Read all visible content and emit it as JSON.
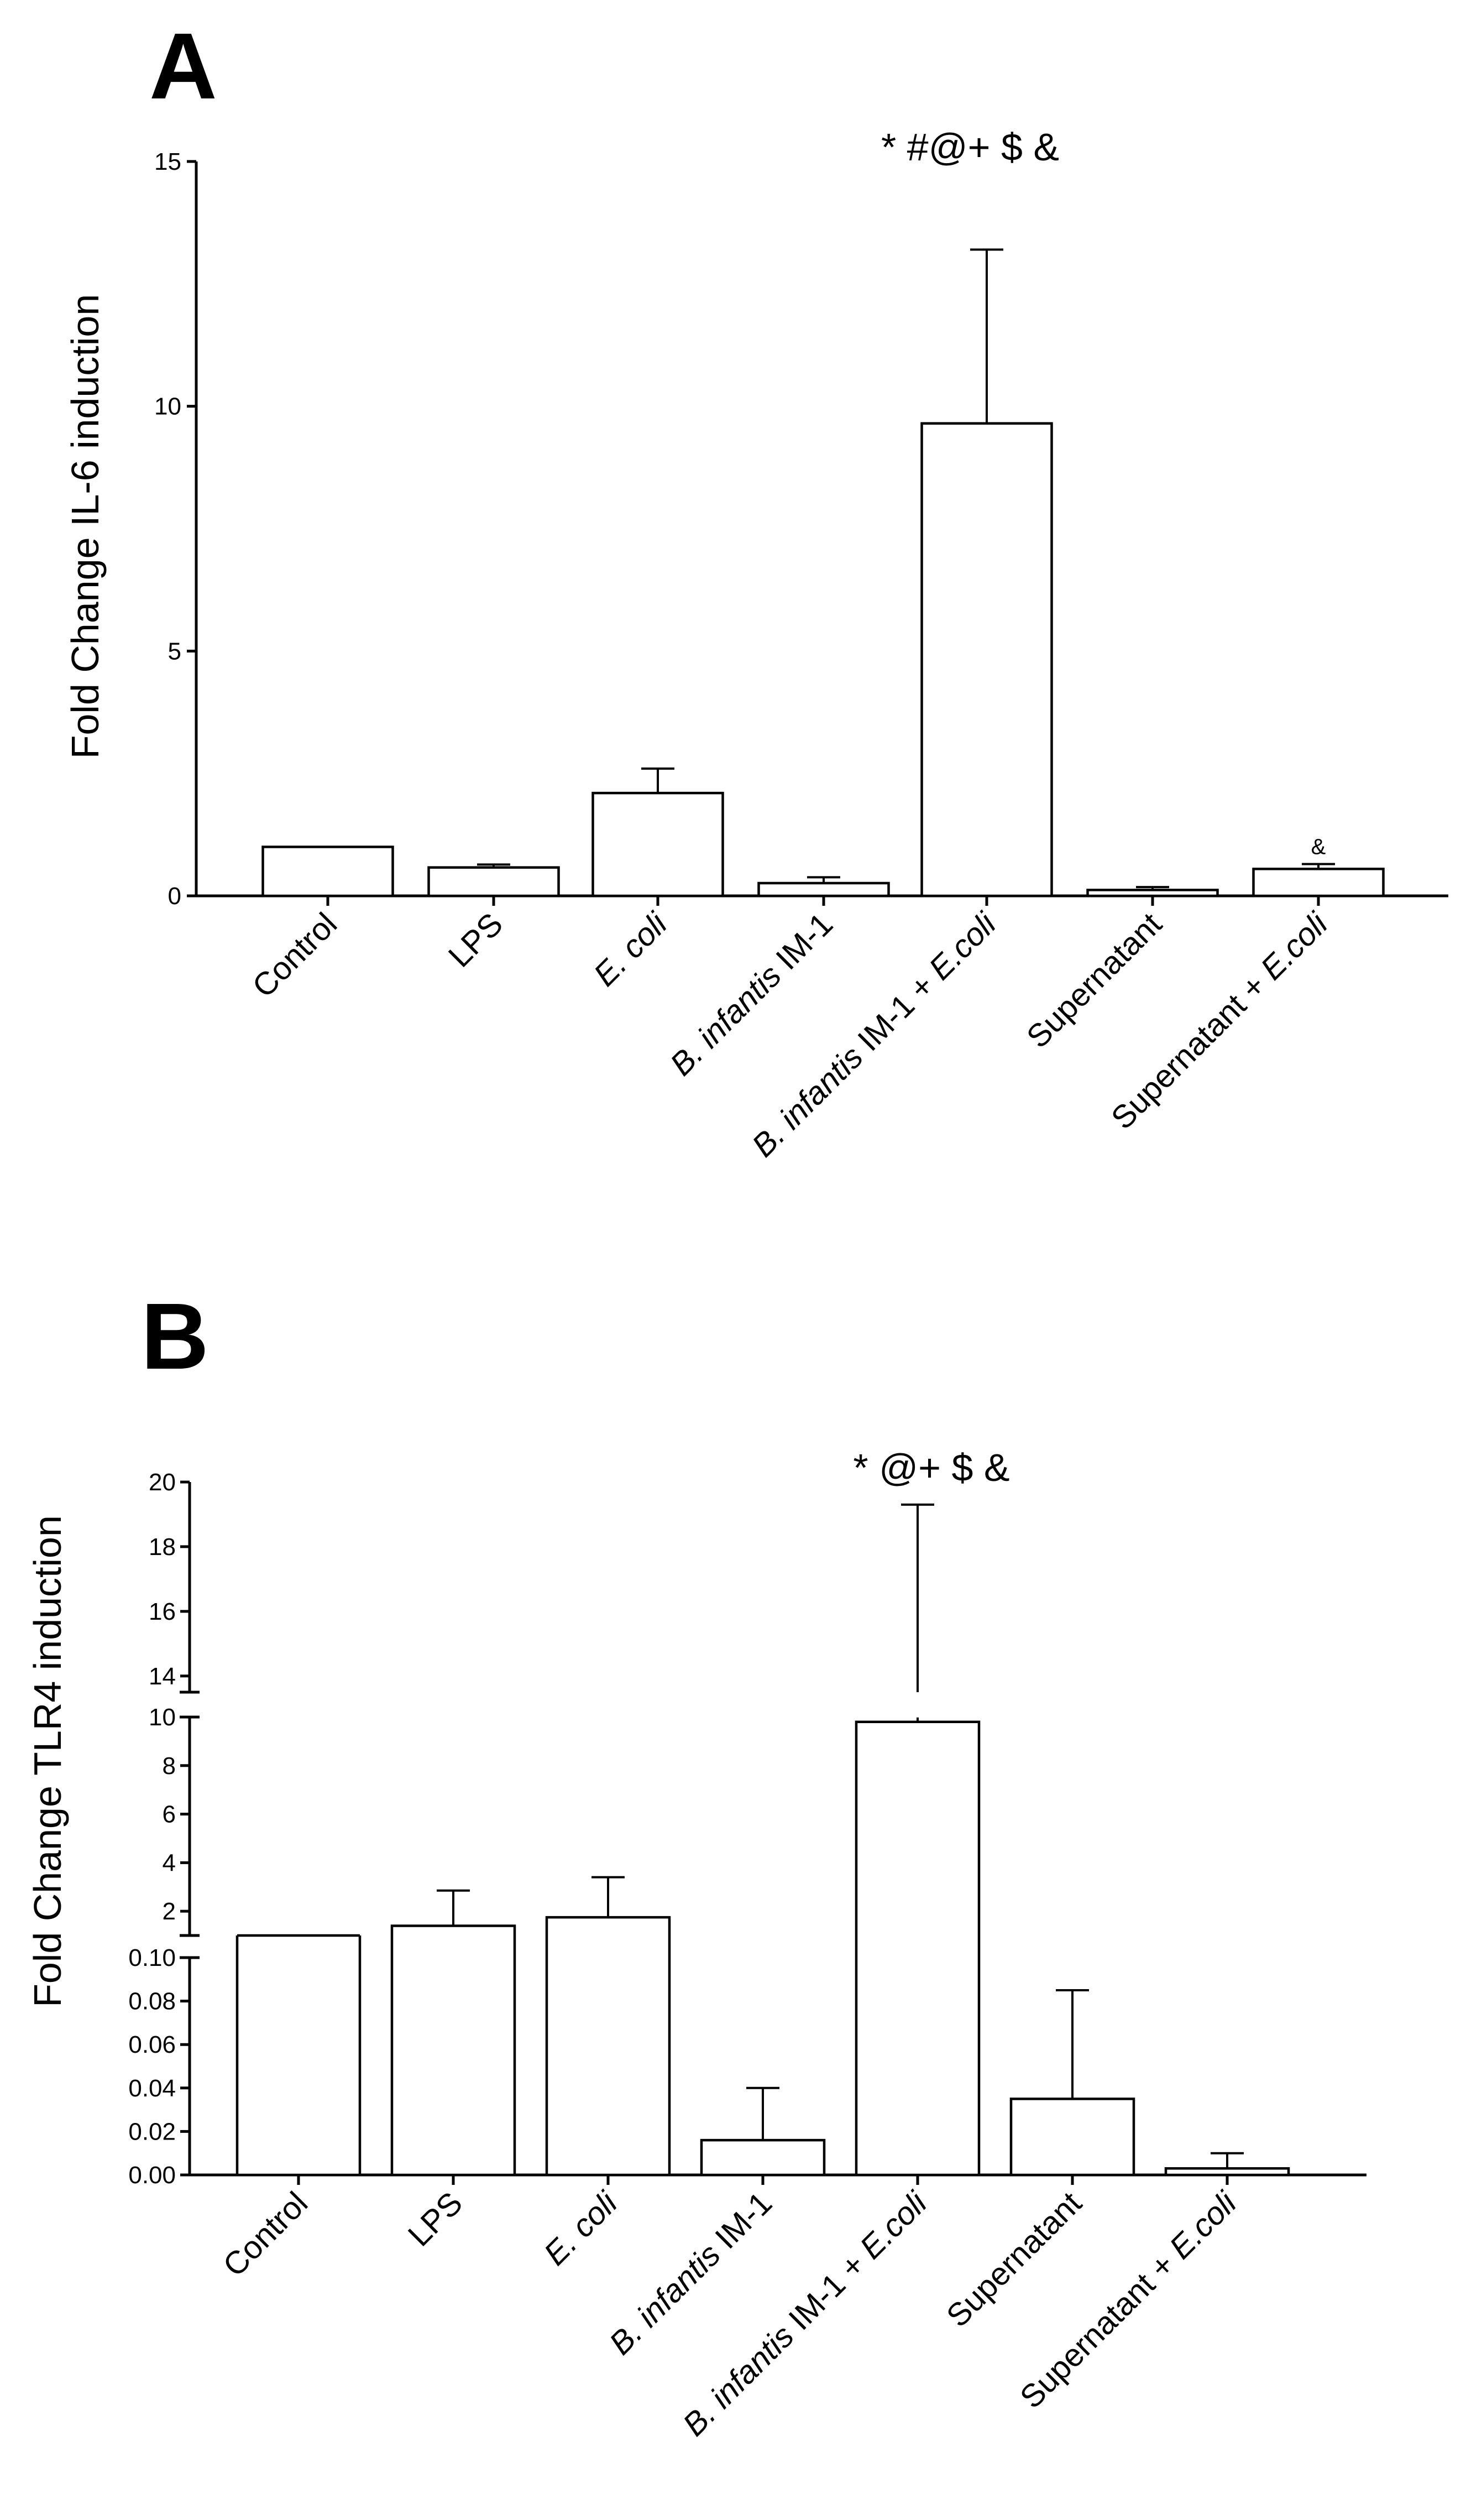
{
  "chart_data": [
    {
      "panel": "A",
      "type": "bar",
      "ylabel": "Fold Change IL-6 induction",
      "ylim": [
        0,
        15
      ],
      "yticks": [
        0,
        5,
        10,
        15
      ],
      "categories": [
        {
          "parts": [
            {
              "t": "Control",
              "i": false
            }
          ]
        },
        {
          "parts": [
            {
              "t": "LPS",
              "i": false
            }
          ]
        },
        {
          "parts": [
            {
              "t": "E. coli",
              "i": true
            }
          ]
        },
        {
          "parts": [
            {
              "t": "B. infantis",
              "i": true
            },
            {
              "t": " IM-1",
              "i": false
            }
          ]
        },
        {
          "parts": [
            {
              "t": "B. infantis",
              "i": true
            },
            {
              "t": " IM-1 + ",
              "i": false
            },
            {
              "t": "E.coli",
              "i": true
            }
          ]
        },
        {
          "parts": [
            {
              "t": "Supernatant",
              "i": false
            }
          ]
        },
        {
          "parts": [
            {
              "t": "Supernatant + ",
              "i": false
            },
            {
              "t": "E.coli",
              "i": true
            }
          ]
        }
      ],
      "values": [
        1.0,
        0.58,
        2.1,
        0.26,
        9.65,
        0.12,
        0.55
      ],
      "errors": [
        0,
        0.06,
        0.5,
        0.12,
        3.55,
        0.06,
        0.1
      ],
      "significance": "* #@+ $ &",
      "bar_annotations": [
        {
          "index": 6,
          "text": "&"
        }
      ]
    },
    {
      "panel": "B",
      "type": "bar",
      "ylabel": "Fold Change TLR4 induction",
      "broken_axis": true,
      "segments": [
        {
          "ylim": [
            0,
            0.1
          ],
          "yticks": [
            "0.00",
            "0.02",
            "0.04",
            "0.06",
            "0.08",
            "0.10"
          ]
        },
        {
          "ylim": [
            1,
            10
          ],
          "yticks": [
            "2",
            "4",
            "6",
            "8",
            "10"
          ]
        },
        {
          "ylim": [
            13.5,
            20
          ],
          "yticks": [
            "14",
            "16",
            "18",
            "20"
          ]
        }
      ],
      "categories": [
        {
          "parts": [
            {
              "t": "Control",
              "i": false
            }
          ]
        },
        {
          "parts": [
            {
              "t": "LPS",
              "i": false
            }
          ]
        },
        {
          "parts": [
            {
              "t": "E. coli",
              "i": true
            }
          ]
        },
        {
          "parts": [
            {
              "t": "B. infantis",
              "i": true
            },
            {
              "t": " IM-1",
              "i": false
            }
          ]
        },
        {
          "parts": [
            {
              "t": "B. infantis",
              "i": true
            },
            {
              "t": " IM-1 + ",
              "i": false
            },
            {
              "t": "E.coli",
              "i": true
            }
          ]
        },
        {
          "parts": [
            {
              "t": "Supernatant",
              "i": false
            }
          ]
        },
        {
          "parts": [
            {
              "t": "Supernatant + ",
              "i": false
            },
            {
              "t": "E.coli",
              "i": true
            }
          ]
        }
      ],
      "values": [
        1.0,
        1.4,
        1.75,
        0.016,
        9.8,
        0.035,
        0.003
      ],
      "errors": [
        0,
        1.45,
        1.65,
        0.024,
        9.5,
        0.05,
        0.007
      ],
      "significance": "*  @+ $ &"
    }
  ]
}
